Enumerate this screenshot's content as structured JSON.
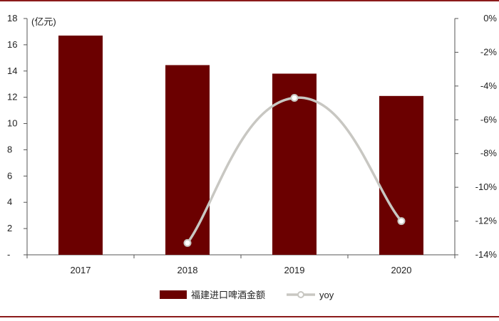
{
  "chart_data": {
    "type": "bar",
    "categories": [
      "2017",
      "2018",
      "2019",
      "2020"
    ],
    "series": [
      {
        "name": "福建进口啤酒金额",
        "type": "bar",
        "axis": "left",
        "values": [
          16.7,
          14.45,
          13.8,
          12.1
        ],
        "color": "#6b0000"
      },
      {
        "name": "yoy",
        "type": "line",
        "axis": "right",
        "values": [
          null,
          -13.3,
          -4.7,
          -12.0
        ],
        "color": "#c8c7c2"
      }
    ],
    "y_left": {
      "unit_label": "(亿元)",
      "ylim": [
        0,
        18
      ],
      "ticks": [
        "-",
        "2",
        "4",
        "6",
        "8",
        "10",
        "12",
        "14",
        "16",
        "18"
      ]
    },
    "y_right": {
      "ylim": [
        -14,
        0
      ],
      "ticks": [
        "0%",
        "-2%",
        "-4%",
        "-6%",
        "-8%",
        "-10%",
        "-12%",
        "-14%"
      ]
    },
    "grid": false,
    "legend_position": "bottom"
  }
}
